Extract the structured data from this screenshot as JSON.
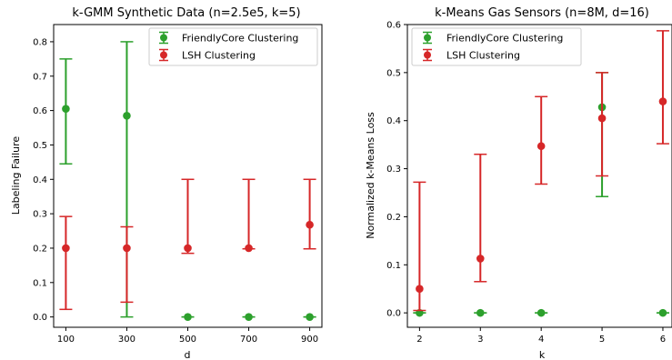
{
  "chart_data": [
    {
      "type": "scatter",
      "title": "k-GMM Synthetic Data (n=2.5e5, k=5)",
      "xlabel": "d",
      "ylabel": "Labeling Failure",
      "x": [
        100,
        300,
        500,
        700,
        900
      ],
      "xticks": [
        100,
        300,
        500,
        700,
        900
      ],
      "xlim": [
        60,
        940
      ],
      "ylim": [
        -0.03,
        0.85
      ],
      "yticks": [
        "0.0",
        "0.1",
        "0.2",
        "0.3",
        "0.4",
        "0.5",
        "0.6",
        "0.7",
        "0.8"
      ],
      "legend_position": "upper-right",
      "grid": false,
      "series": [
        {
          "name": "FriendlyCore Clustering",
          "color": "#2ca02c",
          "values": [
            0.605,
            0.585,
            0.0,
            0.0,
            0.0
          ],
          "err_low": [
            0.445,
            0.0,
            0.0,
            0.0,
            0.0
          ],
          "err_high": [
            0.75,
            0.8,
            0.0,
            0.0,
            0.0
          ]
        },
        {
          "name": "LSH Clustering",
          "color": "#d62728",
          "values": [
            0.2,
            0.2,
            0.2,
            0.2,
            0.268
          ],
          "err_low": [
            0.022,
            0.043,
            0.185,
            0.198,
            0.198
          ],
          "err_high": [
            0.292,
            0.262,
            0.4,
            0.4,
            0.4
          ]
        }
      ]
    },
    {
      "type": "scatter",
      "title": "k-Means Gas Sensors (n=8M, d=16)",
      "xlabel": "k",
      "ylabel": "Normalized k-Means Loss",
      "x": [
        2,
        3,
        4,
        5,
        6
      ],
      "xticks": [
        2,
        3,
        4,
        5,
        6
      ],
      "xlim": [
        1.8,
        6.15
      ],
      "ylim": [
        -0.03,
        0.6
      ],
      "yticks": [
        "0.0",
        "0.1",
        "0.2",
        "0.3",
        "0.4",
        "0.5",
        "0.6"
      ],
      "legend_position": "upper-left",
      "grid": false,
      "series": [
        {
          "name": "FriendlyCore Clustering",
          "color": "#2ca02c",
          "values": [
            0.0,
            0.0,
            0.0,
            0.428,
            0.0
          ],
          "err_low": [
            0.0,
            0.0,
            0.0,
            0.242,
            0.0
          ],
          "err_high": [
            0.0,
            0.0,
            0.0,
            0.5,
            0.0
          ]
        },
        {
          "name": "LSH Clustering",
          "color": "#d62728",
          "values": [
            0.05,
            0.113,
            0.347,
            0.405,
            0.44
          ],
          "err_low": [
            0.005,
            0.065,
            0.268,
            0.285,
            0.352
          ],
          "err_high": [
            0.272,
            0.33,
            0.45,
            0.5,
            0.587
          ]
        }
      ]
    }
  ]
}
